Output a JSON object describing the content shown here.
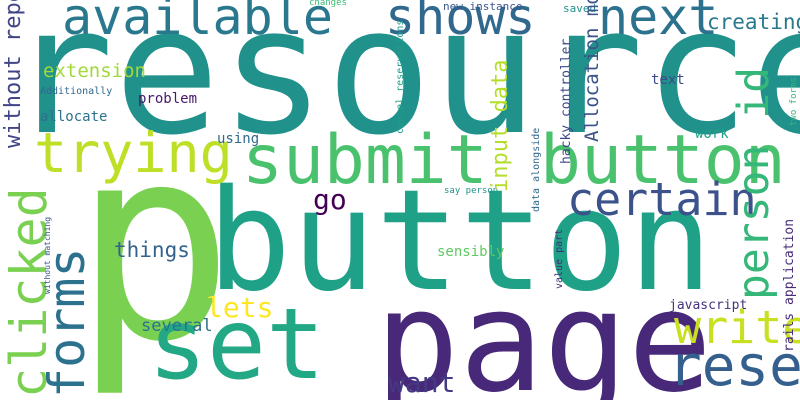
{
  "words": [
    {
      "text": "resource",
      "color": "#21918c"
    },
    {
      "text": "p",
      "color": "#7ad151"
    },
    {
      "text": "button",
      "color": "#1fa187"
    },
    {
      "text": "page",
      "color": "#482878"
    },
    {
      "text": "submit",
      "color": "#4ac16d"
    },
    {
      "text": "button",
      "color": "#4ac16d"
    },
    {
      "text": "set",
      "color": "#22a884"
    },
    {
      "text": "available",
      "color": "#2a788e"
    },
    {
      "text": "shows",
      "color": "#31688e"
    },
    {
      "text": "next",
      "color": "#2c728e"
    },
    {
      "text": "trying",
      "color": "#bddf26"
    },
    {
      "text": "certain",
      "color": "#3b528b"
    },
    {
      "text": "write",
      "color": "#c8e020"
    },
    {
      "text": "reserves",
      "color": "#355f8d"
    },
    {
      "text": "want",
      "color": "#443983"
    },
    {
      "text": "lets",
      "color": "#fde725"
    },
    {
      "text": "go",
      "color": "#440154"
    },
    {
      "text": "creating",
      "color": "#2a788e"
    },
    {
      "text": "extension",
      "color": "#a0da39"
    },
    {
      "text": "things",
      "color": "#33638d"
    },
    {
      "text": "several",
      "color": "#2c728e"
    },
    {
      "text": "problem",
      "color": "#48186a"
    },
    {
      "text": "allocate",
      "color": "#2c728e"
    },
    {
      "text": "using",
      "color": "#31688e"
    },
    {
      "text": "text",
      "color": "#3e4989"
    },
    {
      "text": "work",
      "color": "#1f9e89"
    },
    {
      "text": "sensibly",
      "color": "#5ec962"
    },
    {
      "text": "javascript",
      "color": "#46327e"
    },
    {
      "text": "Additionally",
      "color": "#31688e"
    },
    {
      "text": "changes",
      "color": "#3aba76"
    },
    {
      "text": "new instance",
      "color": "#39568c"
    },
    {
      "text": "saved",
      "color": "#21918c"
    },
    {
      "text": "say person",
      "color": "#21918c"
    },
    {
      "text": "clicked",
      "color": "#7ad151"
    },
    {
      "text": "forms",
      "color": "#2c728e"
    },
    {
      "text": "person id",
      "color": "#35b779"
    },
    {
      "text": "input data",
      "color": "#b5de2b"
    },
    {
      "text": "without repeating",
      "color": "#414487"
    },
    {
      "text": "Allocation model",
      "color": "#3b528b"
    },
    {
      "text": "e g",
      "color": "#7ad151"
    },
    {
      "text": "hacky controller",
      "color": "#3e4989"
    },
    {
      "text": "cancel reservations",
      "color": "#1f9e89"
    },
    {
      "text": "data alongside",
      "color": "#31688e"
    },
    {
      "text": "value part",
      "color": "#472d7b"
    },
    {
      "text": "without matching",
      "color": "#3b528b"
    },
    {
      "text": "rails application",
      "color": "#472d7b"
    },
    {
      "text": "two forms",
      "color": "#35b779"
    }
  ]
}
